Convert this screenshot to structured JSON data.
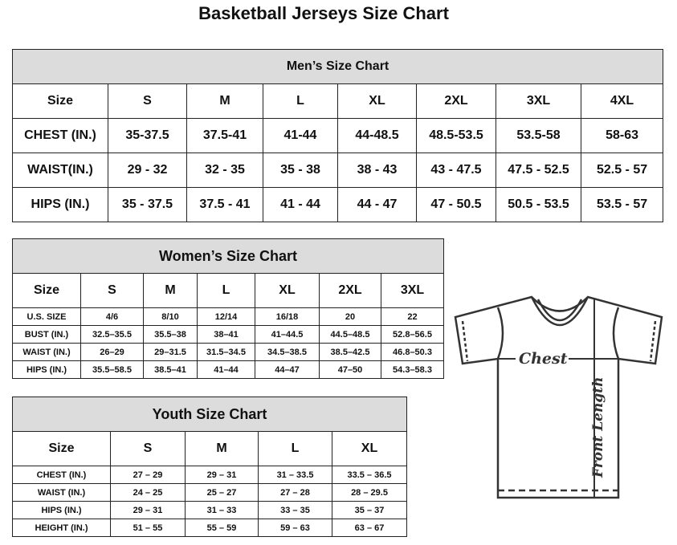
{
  "title": "Basketball Jerseys Size Chart",
  "men": {
    "heading": "Men’s Size Chart",
    "header": [
      "Size",
      "S",
      "M",
      "L",
      "XL",
      "2XL",
      "3XL",
      "4XL"
    ],
    "rows": [
      [
        "CHEST (IN.)",
        "35-37.5",
        "37.5-41",
        "41-44",
        "44-48.5",
        "48.5-53.5",
        "53.5-58",
        "58-63"
      ],
      [
        "WAIST(IN.)",
        "29 - 32",
        "32 - 35",
        "35 - 38",
        "38 - 43",
        "43 - 47.5",
        "47.5 - 52.5",
        "52.5 - 57"
      ],
      [
        "HIPS (IN.)",
        "35 - 37.5",
        "37.5 - 41",
        "41 - 44",
        "44 - 47",
        "47 - 50.5",
        "50.5 - 53.5",
        "53.5 - 57"
      ]
    ]
  },
  "women": {
    "heading": "Women’s Size Chart",
    "header": [
      "Size",
      "S",
      "M",
      "L",
      "XL",
      "2XL",
      "3XL"
    ],
    "rows": [
      [
        "U.S.  SIZE",
        "4/6",
        "8/10",
        "12/14",
        "16/18",
        "20",
        "22"
      ],
      [
        "BUST  (IN.)",
        "32.5–35.5",
        "35.5–38",
        "38–41",
        "41–44.5",
        "44.5–48.5",
        "52.8–56.5"
      ],
      [
        "WAIST  (IN.)",
        "26–29",
        "29–31.5",
        "31.5–34.5",
        "34.5–38.5",
        "38.5–42.5",
        "46.8–50.3"
      ],
      [
        "HIPS  (IN.)",
        "35.5–58.5",
        "38.5–41",
        "41–44",
        "44–47",
        "47–50",
        "54.3–58.3"
      ]
    ]
  },
  "youth": {
    "heading": "Youth Size Chart",
    "header": [
      "Size",
      "S",
      "M",
      "L",
      "XL"
    ],
    "rows": [
      [
        "CHEST  (IN.)",
        "27  –  29",
        "29  –  31",
        "31  –  33.5",
        "33.5  –  36.5"
      ],
      [
        "WAIST  (IN.)",
        "24  –  25",
        "25  –  27",
        "27  –  28",
        "28  –  29.5"
      ],
      [
        "HIPS  (IN.)",
        "29  –  31",
        "31  –  33",
        "33  –  35",
        "35  –  37"
      ],
      [
        "HEIGHT  (IN.)",
        "51  –  55",
        "55  –  59",
        "59  –  63",
        "63  –  67"
      ]
    ]
  },
  "diagram": {
    "chest_label": "Chest",
    "length_label": "Front Length",
    "icon": "t-shirt-icon"
  },
  "colors": {
    "header_bg": "#dcdcdc",
    "border": "#222222"
  }
}
